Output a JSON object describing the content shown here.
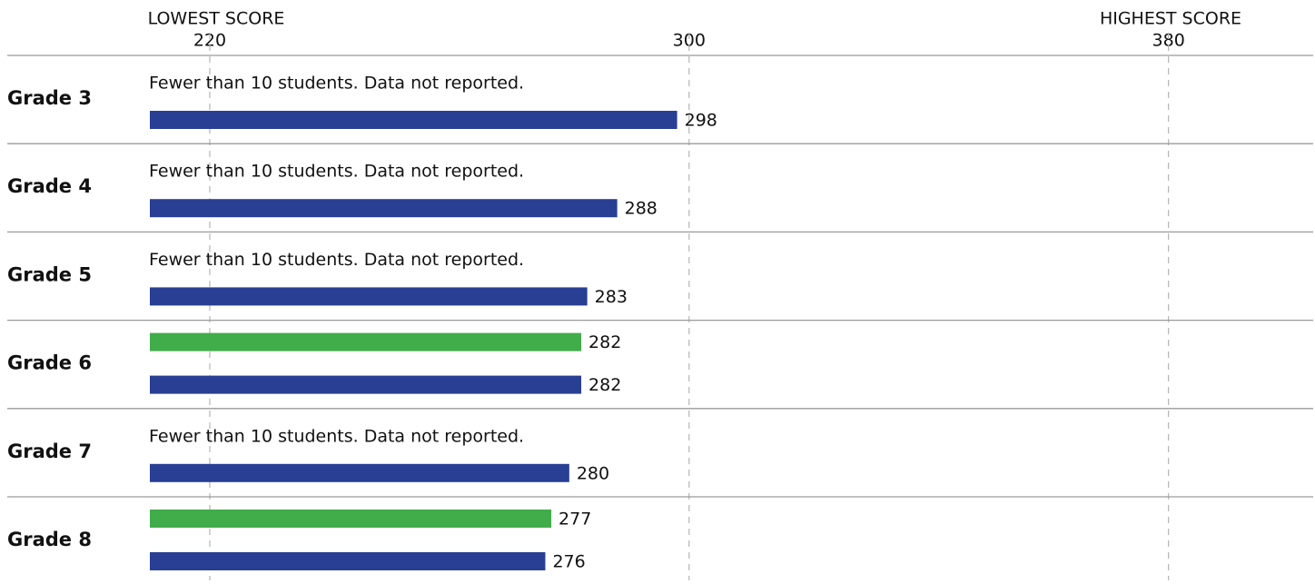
{
  "chart_data": {
    "type": "bar",
    "orientation": "horizontal",
    "x_annotation_low": "LOWEST SCORE",
    "x_annotation_high": "HIGHEST SCORE",
    "categories": [
      "Grade 3",
      "Grade 4",
      "Grade 5",
      "Grade 6",
      "Grade 7",
      "Grade 8"
    ],
    "series": [
      {
        "color": "#41ac4a",
        "values": [
          null,
          null,
          null,
          282,
          null,
          277
        ]
      },
      {
        "color": "#283f93",
        "values": [
          298,
          288,
          283,
          282,
          280,
          276
        ]
      }
    ],
    "notes": [
      "Fewer than 10 students. Data not reported.",
      "Fewer than 10 students. Data not reported.",
      "Fewer than 10 students. Data not reported.",
      null,
      "Fewer than 10 students. Data not reported.",
      null
    ],
    "xlim": [
      210,
      404
    ],
    "xticks": [
      220,
      300,
      380
    ],
    "grid": true
  }
}
